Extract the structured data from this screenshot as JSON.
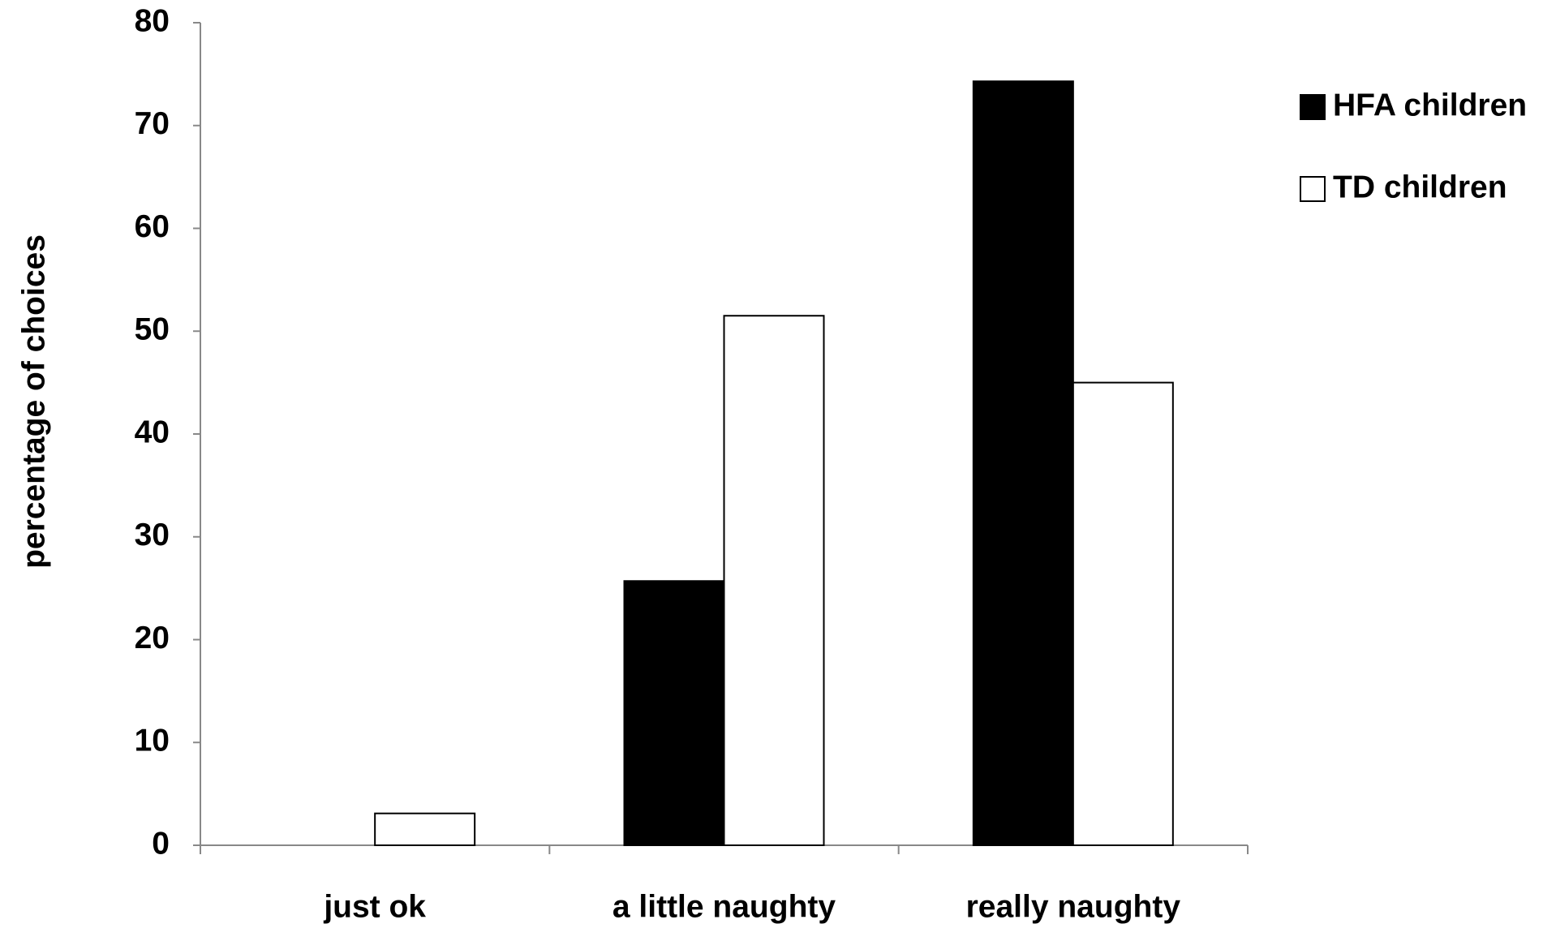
{
  "chart_data": {
    "type": "bar",
    "y_label": "percentage  of choices",
    "categories": [
      "just ok",
      "a little naughty",
      "really naughty"
    ],
    "series": [
      {
        "name": "HFA children",
        "color": "#000000",
        "values": [
          0,
          25.7,
          74.3
        ]
      },
      {
        "name": "TD children",
        "color": "#ffffff",
        "values": [
          3.1,
          51.5,
          45
        ]
      }
    ],
    "ylim": [
      0,
      80
    ],
    "yticks": [
      0,
      10,
      20,
      30,
      40,
      50,
      60,
      70,
      80
    ],
    "legend": "right"
  }
}
